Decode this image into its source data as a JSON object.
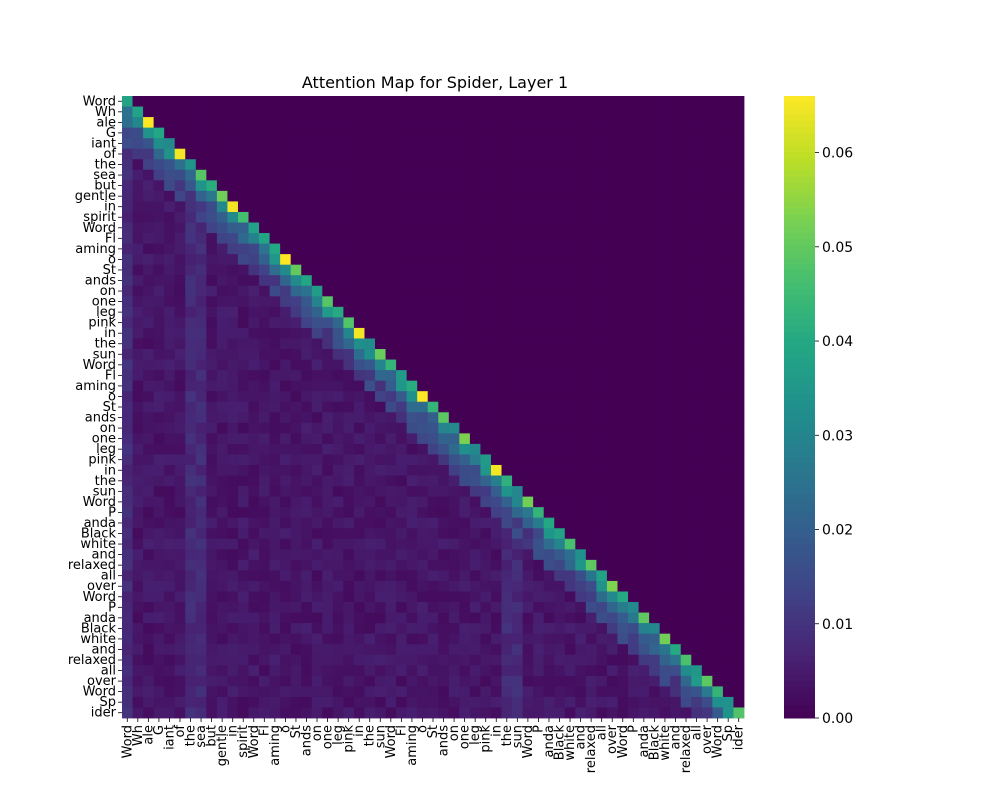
{
  "chart_data": {
    "type": "heatmap",
    "title": "Attention Map for Spider, Layer 1",
    "tokens": [
      "Word",
      "Wh",
      "ale",
      "G",
      "iant",
      "of",
      "the",
      "sea",
      "but",
      "gentle",
      "in",
      "spirit",
      "Word",
      "Fl",
      "aming",
      "o",
      "St",
      "ands",
      "on",
      "one",
      "leg",
      "pink",
      "in",
      "the",
      "sun",
      "Word",
      "Fl",
      "aming",
      "o",
      "St",
      "ands",
      "on",
      "one",
      "leg",
      "pink",
      "in",
      "the",
      "sun",
      "Word",
      "P",
      "anda",
      "Black",
      "white",
      "and",
      "relaxed",
      "all",
      "over",
      "Word",
      "P",
      "anda",
      "Black",
      "white",
      "and",
      "relaxed",
      "all",
      "over",
      "Word",
      "Sp",
      "ider"
    ],
    "colormap": "viridis",
    "mask": "lower-triangular",
    "value_range": [
      0.0,
      0.066
    ],
    "colorbar_ticks": [
      "0.00",
      "0.01",
      "0.02",
      "0.03",
      "0.04",
      "0.05",
      "0.06"
    ],
    "peak_cells": [
      {
        "row": "ale",
        "col": "ale",
        "value": 0.066
      },
      {
        "row": "of",
        "col": "of",
        "value": 0.065
      },
      {
        "row": "in",
        "col": "in",
        "value": 0.065
      },
      {
        "row": "o",
        "col": "o",
        "value": 0.066
      },
      {
        "row": "in",
        "col": "in",
        "value": 0.065
      },
      {
        "row": "o",
        "col": "o",
        "value": 0.066
      },
      {
        "row": "in",
        "col": "in",
        "value": 0.065
      }
    ]
  }
}
